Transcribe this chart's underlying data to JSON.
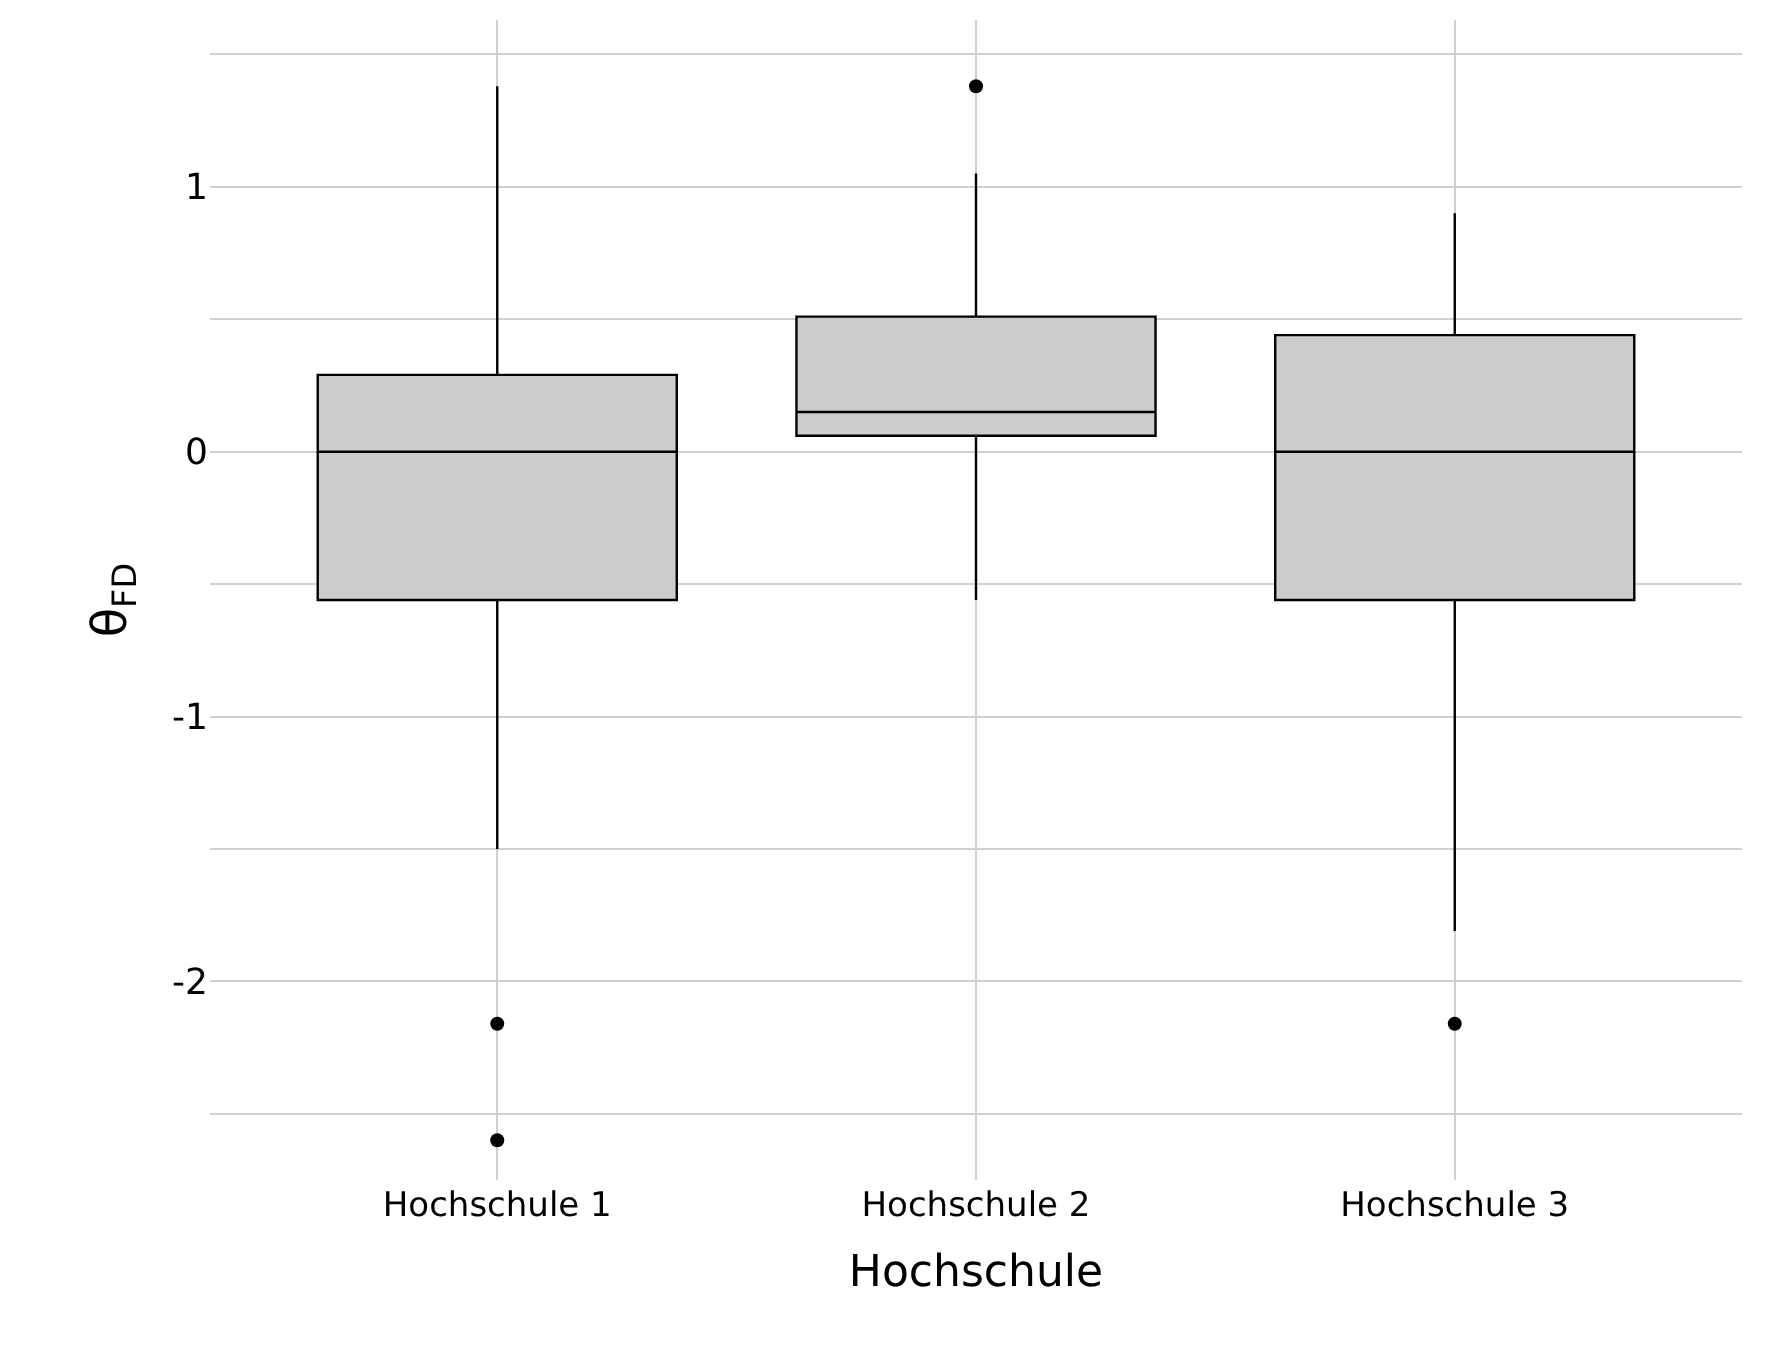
{
  "chart_data": {
    "type": "box",
    "xlabel": "Hochschule",
    "ylabel": "θ$_{FD}$",
    "categories": [
      "Hochschule 1",
      "Hochschule 2",
      "Hochschule 3"
    ],
    "series": [
      {
        "color": "#cccccc",
        "boxes": [
          {
            "low": -1.5,
            "q1": -0.56,
            "median": 0,
            "q3": 0.29,
            "high": 1.38,
            "outliers": [
              -2.16,
              -2.6
            ]
          },
          {
            "low": -0.56,
            "q1": 0.06,
            "median": 0.15,
            "q3": 0.51,
            "high": 1.05,
            "outliers": [
              1.38
            ]
          },
          {
            "low": -1.81,
            "q1": -0.56,
            "median": 0,
            "q3": 0.44,
            "high": 0.9,
            "outliers": [
              -2.16
            ]
          }
        ]
      }
    ],
    "ylim": [
      -2.75,
      1.63
    ],
    "yticks": [
      {
        "value": -2.5,
        "label": null
      },
      -2,
      {
        "value": -1.5,
        "label": null
      },
      -1,
      {
        "value": -0.5,
        "label": null
      },
      0,
      {
        "value": 0.5,
        "label": null
      },
      1,
      {
        "value": 1.5,
        "label": null
      }
    ],
    "grid": true
  }
}
